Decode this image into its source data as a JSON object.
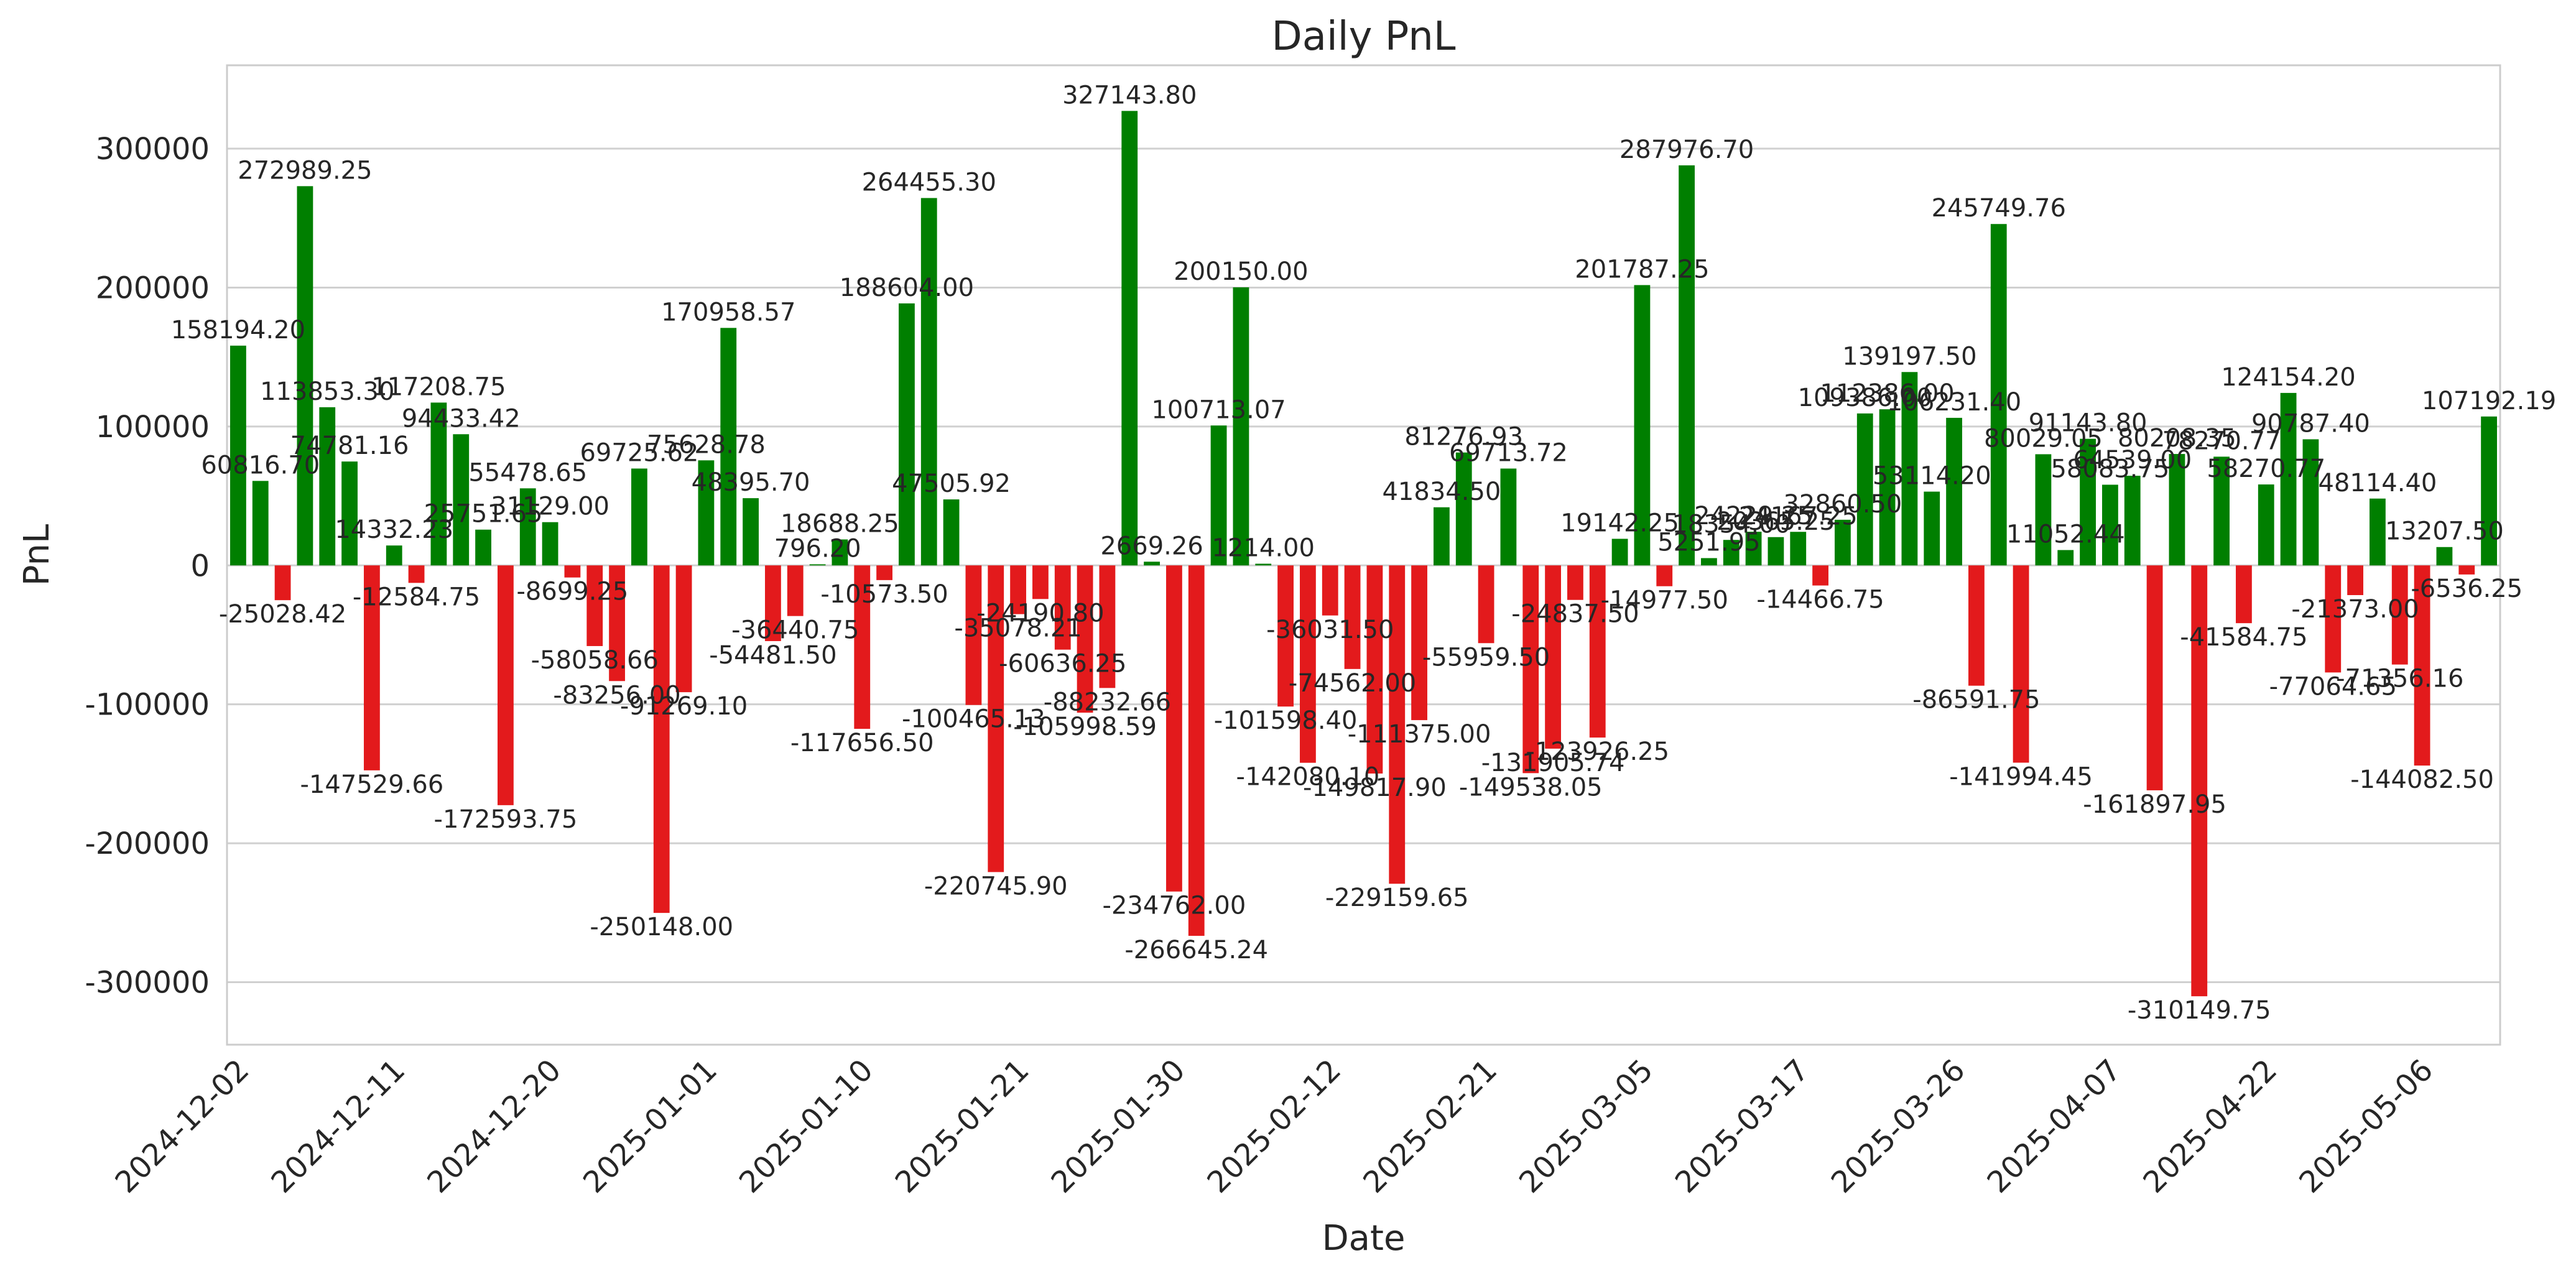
{
  "chart_data": {
    "type": "bar",
    "title": "Daily PnL",
    "xlabel": "Date",
    "ylabel": "PnL",
    "ylim": [
      -345000,
      360000
    ],
    "yticks": [
      -300000,
      -200000,
      -100000,
      0,
      100000,
      200000,
      300000
    ],
    "xticks": [
      {
        "index": 0,
        "label": "2024-12-02"
      },
      {
        "index": 7,
        "label": "2024-12-11"
      },
      {
        "index": 14,
        "label": "2024-12-20"
      },
      {
        "index": 21,
        "label": "2025-01-01"
      },
      {
        "index": 28,
        "label": "2025-01-10"
      },
      {
        "index": 35,
        "label": "2025-01-21"
      },
      {
        "index": 42,
        "label": "2025-01-30"
      },
      {
        "index": 49,
        "label": "2025-02-12"
      },
      {
        "index": 56,
        "label": "2025-02-21"
      },
      {
        "index": 63,
        "label": "2025-03-05"
      },
      {
        "index": 70,
        "label": "2025-03-17"
      },
      {
        "index": 77,
        "label": "2025-03-26"
      },
      {
        "index": 84,
        "label": "2025-04-07"
      },
      {
        "index": 91,
        "label": "2025-04-22"
      },
      {
        "index": 98,
        "label": "2025-05-06"
      }
    ],
    "grid": true,
    "colors": {
      "positive": "#007f00",
      "negative": "#e31a1c",
      "grid": "#d0d0d0",
      "frame": "#cccccc",
      "text": "#262626"
    },
    "values": [
      158194.2,
      60816.7,
      -25028.42,
      272989.25,
      113853.3,
      74781.16,
      -147529.66,
      14332.23,
      -12584.75,
      117208.75,
      94433.42,
      25751.65,
      -172593.75,
      55478.65,
      31129.0,
      -8699.25,
      -58058.66,
      -83256.0,
      69725.62,
      -250148.0,
      -91269.1,
      75628.78,
      170958.57,
      48395.7,
      -54481.5,
      -36440.75,
      796.2,
      18688.25,
      -117656.5,
      -10573.5,
      188604.0,
      264455.3,
      47505.92,
      -100465.13,
      -220745.9,
      -35078.21,
      -24190.8,
      -60636.25,
      -105998.59,
      -88232.66,
      327143.8,
      2669.26,
      -234762.0,
      -266645.24,
      100713.07,
      200150.0,
      1214.0,
      -101598.4,
      -142080.1,
      -36031.5,
      -74562.0,
      -149817.9,
      -229159.65,
      -111375.0,
      41834.5,
      81276.93,
      -55959.5,
      69713.72,
      -149538.05,
      -131905.74,
      -24837.5,
      -123926.25,
      19142.25,
      201787.25,
      -14977.5,
      287976.7,
      5251.95,
      18354.0,
      24229.25,
      20365.25,
      24167.25,
      -14466.75,
      32860.5,
      109386.0,
      112386.0,
      139197.5,
      53114.2,
      106231.4,
      -86591.75,
      245749.76,
      -141994.45,
      80029.05,
      11052.44,
      91143.8,
      58083.75,
      64539.0,
      -161897.95,
      80208.35,
      -310149.75,
      78270.77,
      -41584.75,
      58270.77,
      124154.2,
      90787.4,
      -77064.65,
      -21373.0,
      48114.4,
      -71356.16,
      -144082.5,
      13207.5,
      -6536.25,
      107192.19
    ],
    "data_labels": [
      "158194.20",
      "60816.70",
      "-25028.42",
      "272989.25",
      "113853.30",
      "74781.16",
      "-147529.66",
      "14332.23",
      "-12584.75",
      "117208.75",
      "94433.42",
      "25751.65",
      "-172593.75",
      "55478.65",
      "31129.00",
      "-8699.25",
      "-58058.66",
      "-83256.00",
      "69725.62",
      "-250148.00",
      "-91269.10",
      "75628.78",
      "170958.57",
      "48395.70",
      "-54481.50",
      "-36440.75",
      "796.20",
      "18688.25",
      "-117656.50",
      "-10573.50",
      "188604.00",
      "264455.30",
      "47505.92",
      "-100465.13",
      "-220745.90",
      "-35078.21",
      "-24190.80",
      "-60636.25",
      "-105998.59",
      "-88232.66",
      "327143.80",
      "2669.26",
      "-234762.00",
      "-266645.24",
      "100713.07",
      "200150.00",
      "1214.00",
      "-101598.40",
      "-142080.10",
      "-36031.50",
      "-74562.00",
      "-149817.90",
      "-229159.65",
      "-111375.00",
      "41834.50",
      "81276.93",
      "-55959.50",
      "69713.72",
      "-149538.05",
      "-131905.74",
      "-24837.50",
      "-123926.25",
      "19142.25",
      "201787.25",
      "-14977.50",
      "287976.70",
      "5251.95",
      "18354.00",
      "24229.25",
      "20365.25",
      "24167.25",
      "-14466.75",
      "32860.50",
      "109386.00",
      "112386.00",
      "139197.50",
      "53114.20",
      "106231.40",
      "-86591.75",
      "245749.76",
      "-141994.45",
      "80029.05",
      "11052.44",
      "91143.80",
      "58083.75",
      "64539.00",
      "-161897.95",
      "80208.35",
      "-310149.75",
      "78270.77",
      "-41584.75",
      "58270.77",
      "124154.20",
      "90787.40",
      "-77064.65",
      "-21373.00",
      "48114.40",
      "-71356.16",
      "-144082.50",
      "13207.50",
      "-6536.25",
      "107192.19"
    ]
  }
}
